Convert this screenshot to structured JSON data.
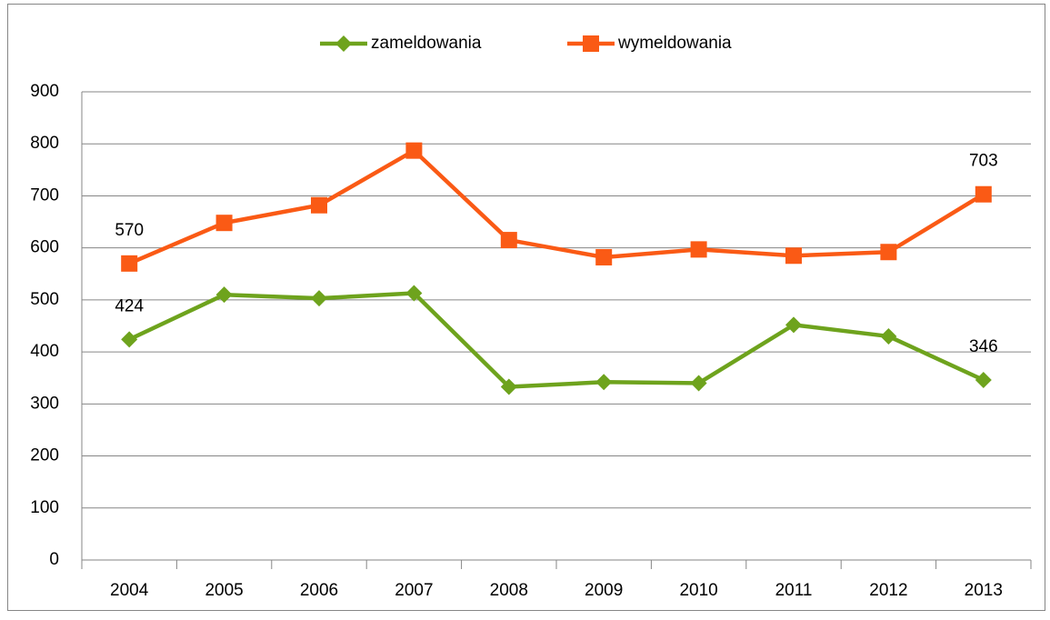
{
  "chart_data": {
    "type": "line",
    "categories": [
      "2004",
      "2005",
      "2006",
      "2007",
      "2008",
      "2009",
      "2010",
      "2011",
      "2012",
      "2013"
    ],
    "series": [
      {
        "name": "zameldowania",
        "color": "#6ea31d",
        "marker": "diamond",
        "values": [
          424,
          510,
          503,
          513,
          333,
          342,
          340,
          452,
          430,
          346
        ]
      },
      {
        "name": "wymeldowania",
        "color": "#fa5a15",
        "marker": "square",
        "values": [
          570,
          648,
          682,
          787,
          615,
          582,
          597,
          585,
          592,
          703
        ]
      }
    ],
    "ylim": [
      0,
      900
    ],
    "yticks": [
      0,
      100,
      200,
      300,
      400,
      500,
      600,
      700,
      800,
      900
    ],
    "grid": true,
    "legend": "top",
    "data_labels": "ends"
  }
}
